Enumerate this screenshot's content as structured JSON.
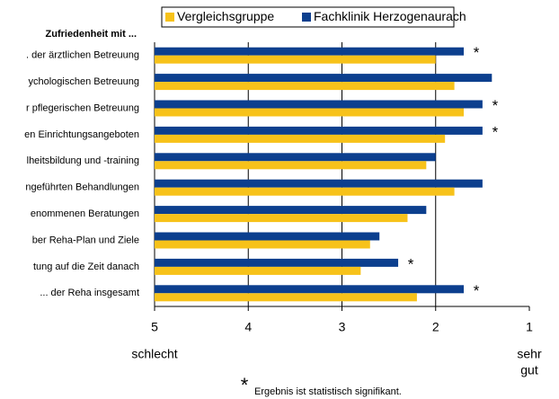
{
  "chart_data": {
    "type": "bar",
    "orientation": "horizontal",
    "title": "Zufriedenheit mit ...",
    "categories": [
      ". der ärztlichen Betreuung",
      "ychologischen Betreuung",
      "r pflegerischen Betreuung",
      "en Einrichtungsangeboten",
      "lheitsbildung und -training",
      "ngeführten Behandlungen",
      "enommenen Beratungen",
      "ber Reha-Plan und Ziele",
      "tung auf die Zeit danach",
      "... der Reha insgesamt"
    ],
    "series": [
      {
        "name": "Vergleichsgruppe",
        "color": "#f7c21a",
        "values": [
          2.0,
          1.8,
          1.7,
          1.9,
          2.1,
          1.8,
          2.3,
          2.7,
          2.8,
          2.2
        ]
      },
      {
        "name": "Fachklinik Herzogenaurach",
        "color": "#0c3f8e",
        "values": [
          1.7,
          1.4,
          1.5,
          1.5,
          2.0,
          1.5,
          2.1,
          2.6,
          2.4,
          1.7
        ]
      }
    ],
    "significance": [
      "*",
      null,
      "*",
      "*",
      null,
      null,
      null,
      null,
      "*",
      "*"
    ],
    "xlim": [
      5,
      1
    ],
    "xticks": [
      5,
      4,
      3,
      2,
      1
    ],
    "x_low_label": "schlecht",
    "x_high_label": [
      "sehr",
      "gut"
    ],
    "footnote_mark": "*",
    "footnote": "Ergebnis ist statistisch signifikant.",
    "grid": true,
    "legend": "top"
  }
}
